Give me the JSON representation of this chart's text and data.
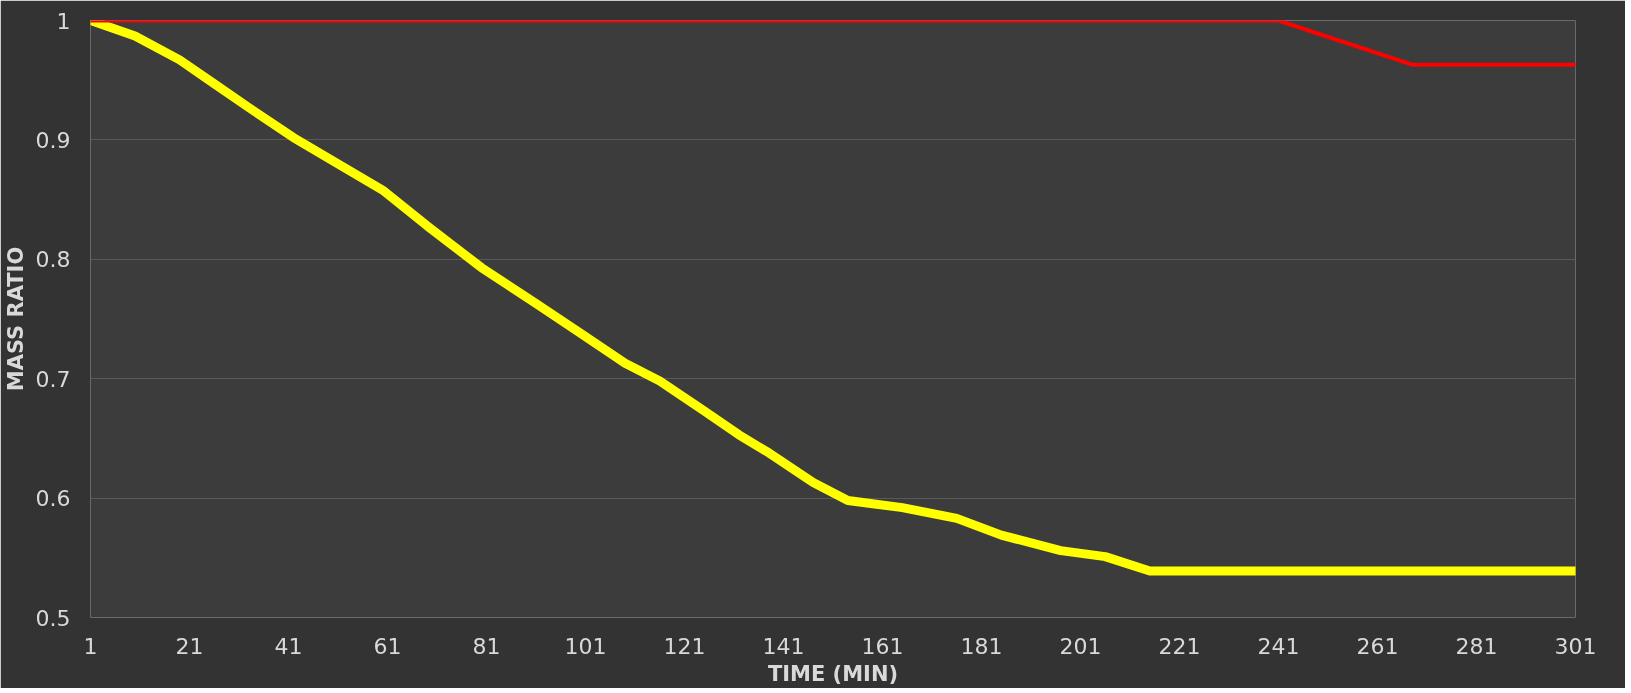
{
  "chart_data": {
    "type": "line",
    "xlabel": "TIME (MIN)",
    "ylabel": "MASS RATIO",
    "xlim": [
      1,
      301
    ],
    "xticks": [
      1,
      21,
      41,
      61,
      81,
      101,
      121,
      141,
      161,
      181,
      201,
      221,
      241,
      261,
      281,
      301
    ],
    "ylim": [
      0.5,
      1
    ],
    "yticks": [
      0.5,
      0.6,
      0.7,
      0.8,
      0.9,
      1
    ],
    "grid": "y",
    "series": [
      {
        "color": "#ffff00",
        "x": [
          1,
          10,
          19,
          26,
          33,
          42,
          51,
          60,
          69,
          80,
          91,
          100,
          109,
          116,
          125,
          132,
          138,
          147,
          154,
          165,
          176,
          185,
          197,
          206,
          215,
          301
        ],
        "values": [
          1.0,
          0.987,
          0.967,
          0.947,
          0.927,
          0.902,
          0.88,
          0.858,
          0.828,
          0.793,
          0.763,
          0.738,
          0.713,
          0.698,
          0.673,
          0.653,
          0.638,
          0.613,
          0.598,
          0.592,
          0.583,
          0.569,
          0.556,
          0.551,
          0.539,
          0.539
        ]
      },
      {
        "color": "#ff0000",
        "x": [
          1,
          241,
          268,
          301
        ],
        "values": [
          1.0,
          1.0,
          0.963,
          0.963
        ]
      }
    ]
  }
}
